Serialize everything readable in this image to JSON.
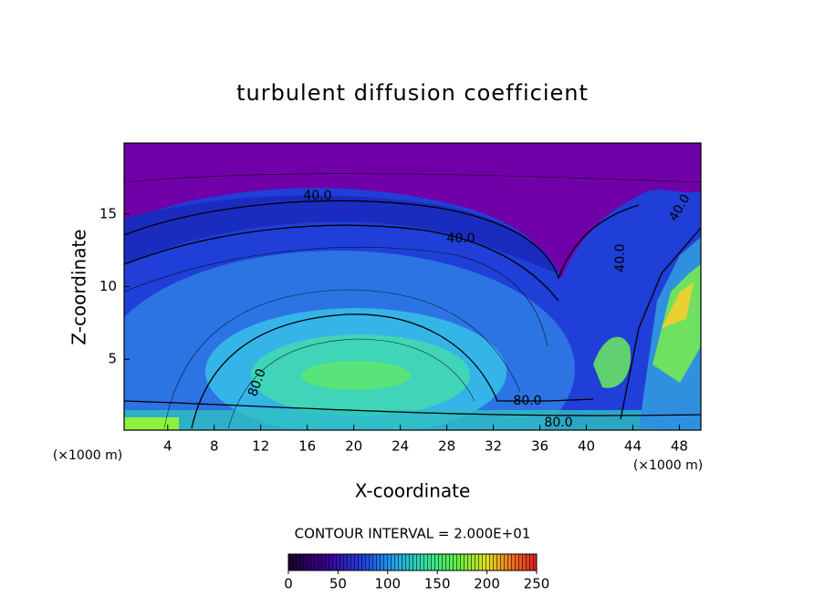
{
  "chart_data": {
    "type": "contour",
    "title": "turbulent diffusion coefficient",
    "x_label": "X-coordinate",
    "y_label": "Z-coordinate",
    "y_unit_label": "(×1000 m)",
    "x_unit_label": "(×1000 m)",
    "xlim": [
      0.25,
      49.85
    ],
    "ylim": [
      0.125,
      19.875
    ],
    "xticks": [
      4,
      8,
      12,
      16,
      20,
      24,
      28,
      32,
      36,
      40,
      44,
      48
    ],
    "yticks": [
      5,
      10,
      15
    ],
    "contour_labels": [
      "40.0",
      "40.0",
      "40.0",
      "40.0",
      "80.0",
      "80.0",
      "80.0"
    ],
    "contour_interval": "CONTOUR INTERVAL = 2.000E+01",
    "colorbar": {
      "lim": [
        0,
        250
      ],
      "ticks": [
        0,
        50,
        100,
        150,
        200,
        250
      ]
    }
  }
}
